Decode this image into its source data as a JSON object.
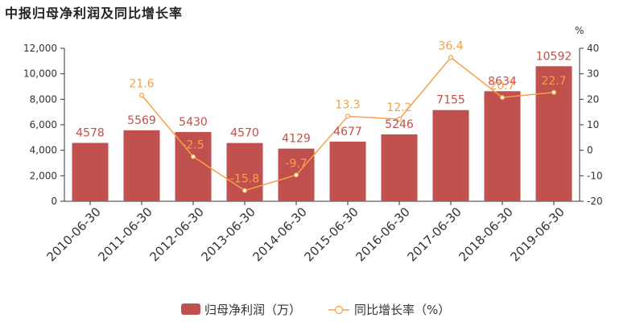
{
  "title": "中报归母净利润及同比增长率",
  "chart_data": {
    "type": "bar",
    "categories": [
      "2010-06-30",
      "2011-06-30",
      "2012-06-30",
      "2013-06-30",
      "2014-06-30",
      "2015-06-30",
      "2016-06-30",
      "2017-06-30",
      "2018-06-30",
      "2019-06-30"
    ],
    "series": [
      {
        "name": "归母净利润（万）",
        "type": "bar",
        "axis": "left",
        "values": [
          4578,
          5569,
          5430,
          4570,
          4129,
          4677,
          5246,
          7155,
          8634,
          10592
        ],
        "labels": [
          "4578",
          "5569",
          "5430",
          "4570",
          "4129",
          "4677",
          "5246",
          "7155",
          "8634",
          "10592"
        ]
      },
      {
        "name": "同比增长率（%）",
        "type": "line",
        "axis": "right",
        "values": [
          null,
          21.6,
          -2.5,
          -15.8,
          -9.7,
          13.3,
          12.2,
          36.4,
          20.7,
          22.7
        ],
        "labels": [
          "",
          "21.6",
          "-2.5",
          "-15.8",
          "-9.7",
          "13.3",
          "12.2",
          "36.4",
          "20.7",
          "22.7"
        ]
      }
    ],
    "y_left": {
      "min": 0,
      "max": 12000,
      "ticks": [
        "0",
        "2,000",
        "4,000",
        "6,000",
        "8,000",
        "10,000",
        "12,000"
      ]
    },
    "y_right": {
      "min": -20,
      "max": 40,
      "unit": "%",
      "ticks": [
        "-20",
        "-10",
        "0",
        "10",
        "20",
        "30",
        "40"
      ]
    },
    "legend_position": "bottom",
    "colors": {
      "bar": "#c0504d",
      "line": "#f5a04a"
    }
  }
}
